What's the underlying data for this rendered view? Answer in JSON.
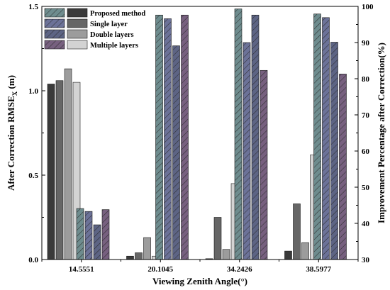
{
  "chart_data": {
    "type": "bar",
    "categories": [
      "14.5551",
      "20.1045",
      "34.2426",
      "38.5977"
    ],
    "xlabel": "Viewing Zenith Angle(°)",
    "ylabel_left": {
      "main": "After Correction RMSE",
      "sub": "X",
      "unit": " (m)"
    },
    "ylabel_right": "Improvement Percentage after Correction(%)",
    "ylim_left": [
      0,
      1.5
    ],
    "ylim_right": [
      30,
      100
    ],
    "yticks_left": [
      "0.0",
      "0.5",
      "1.0",
      "1.5"
    ],
    "yticks_right": [
      "30",
      "40",
      "50",
      "60",
      "70",
      "80",
      "90",
      "100"
    ],
    "series_left": [
      {
        "name": "Proposed method",
        "color": "#3a3a3a",
        "values": [
          1.04,
          0.02,
          0.005,
          0.05
        ]
      },
      {
        "name": "Single layer",
        "color": "#666666",
        "values": [
          1.06,
          0.04,
          0.25,
          0.33
        ]
      },
      {
        "name": "Double layers",
        "color": "#9c9c9c",
        "values": [
          1.13,
          0.13,
          0.06,
          0.1
        ]
      },
      {
        "name": "Multiple layers",
        "color": "#d3d3d3",
        "values": [
          1.05,
          0.02,
          0.45,
          0.62
        ]
      }
    ],
    "series_right": [
      {
        "name": "",
        "color": "#6e8c8e",
        "values": [
          44.1,
          97.6,
          99.3,
          97.9
        ]
      },
      {
        "name": "",
        "color": "#6c7298",
        "values": [
          43.3,
          96.6,
          90.0,
          96.9
        ]
      },
      {
        "name": "",
        "color": "#5d6484",
        "values": [
          39.6,
          89.1,
          97.6,
          90.1
        ]
      },
      {
        "name": "",
        "color": "#77607f",
        "values": [
          43.8,
          97.6,
          82.3,
          81.3
        ]
      }
    ],
    "legend_position": "top-left",
    "grid": false
  }
}
